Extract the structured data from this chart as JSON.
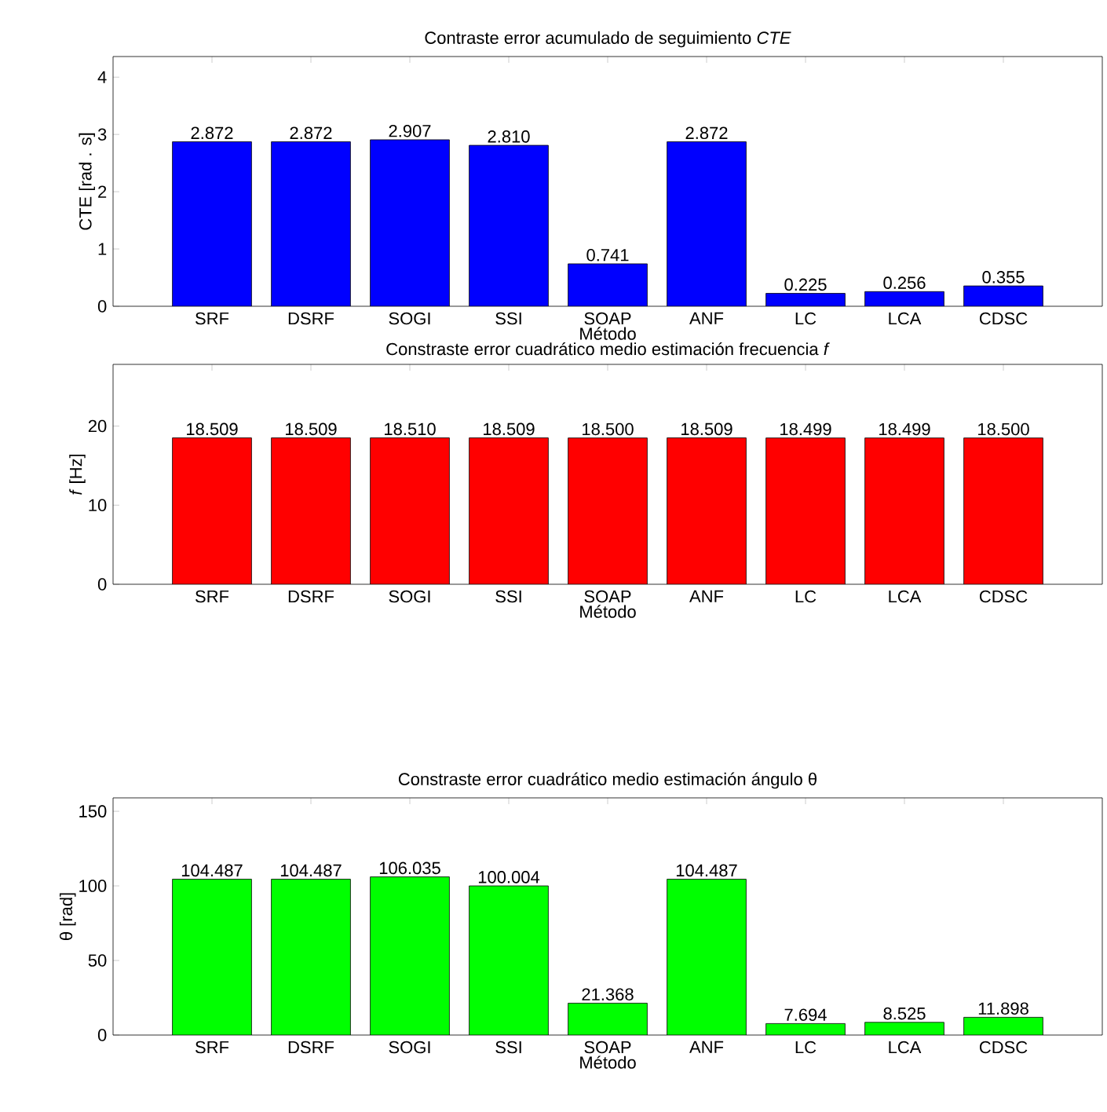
{
  "chart_data": [
    {
      "type": "bar",
      "title": "Contraste error acumulado de seguimiento  *CTE*",
      "xlabel": "Método",
      "ylabel": "CTE [rad . s]",
      "categories": [
        "SRF",
        "DSRF",
        "SOGI",
        "SSI",
        "SOAP",
        "ANF",
        "LC",
        "LCA",
        "CDSC"
      ],
      "values": [
        2.872,
        2.872,
        2.907,
        2.81,
        0.741,
        2.872,
        0.225,
        0.256,
        0.355
      ],
      "value_labels": [
        "2.872",
        "2.872",
        "2.907",
        "2.810",
        "0.741",
        "2.872",
        "0.225",
        "0.256",
        "0.355"
      ],
      "color": "#0000ff",
      "ylim": [
        0,
        4.36
      ],
      "yticks": [
        0,
        1,
        2,
        3,
        4
      ]
    },
    {
      "type": "bar",
      "title": "Constraste error cuadrático medio estimación frecuencia *f*",
      "xlabel": "Método",
      "ylabel": "*f* [Hz]",
      "categories": [
        "SRF",
        "DSRF",
        "SOGI",
        "SSI",
        "SOAP",
        "ANF",
        "LC",
        "LCA",
        "CDSC"
      ],
      "values": [
        18.509,
        18.509,
        18.51,
        18.509,
        18.5,
        18.509,
        18.499,
        18.499,
        18.5
      ],
      "value_labels": [
        "18.509",
        "18.509",
        "18.510",
        "18.509",
        "18.500",
        "18.509",
        "18.499",
        "18.499",
        "18.500"
      ],
      "color": "#ff0000",
      "ylim": [
        0,
        27.8
      ],
      "yticks": [
        0,
        10,
        20
      ]
    },
    {
      "type": "bar",
      "title": "Constraste error cuadrático medio estimación ángulo θ",
      "xlabel": "Método",
      "ylabel": "θ [rad]",
      "categories": [
        "SRF",
        "DSRF",
        "SOGI",
        "SSI",
        "SOAP",
        "ANF",
        "LC",
        "LCA",
        "CDSC"
      ],
      "values": [
        104.487,
        104.487,
        106.035,
        100.004,
        21.368,
        104.487,
        7.694,
        8.525,
        11.898
      ],
      "value_labels": [
        "104.487",
        "104.487",
        "106.035",
        "100.004",
        "21.368",
        "104.487",
        "7.694",
        "8.525",
        "11.898"
      ],
      "color": "#00ff00",
      "ylim": [
        0,
        159
      ],
      "yticks": [
        0,
        50,
        100,
        150
      ]
    }
  ]
}
